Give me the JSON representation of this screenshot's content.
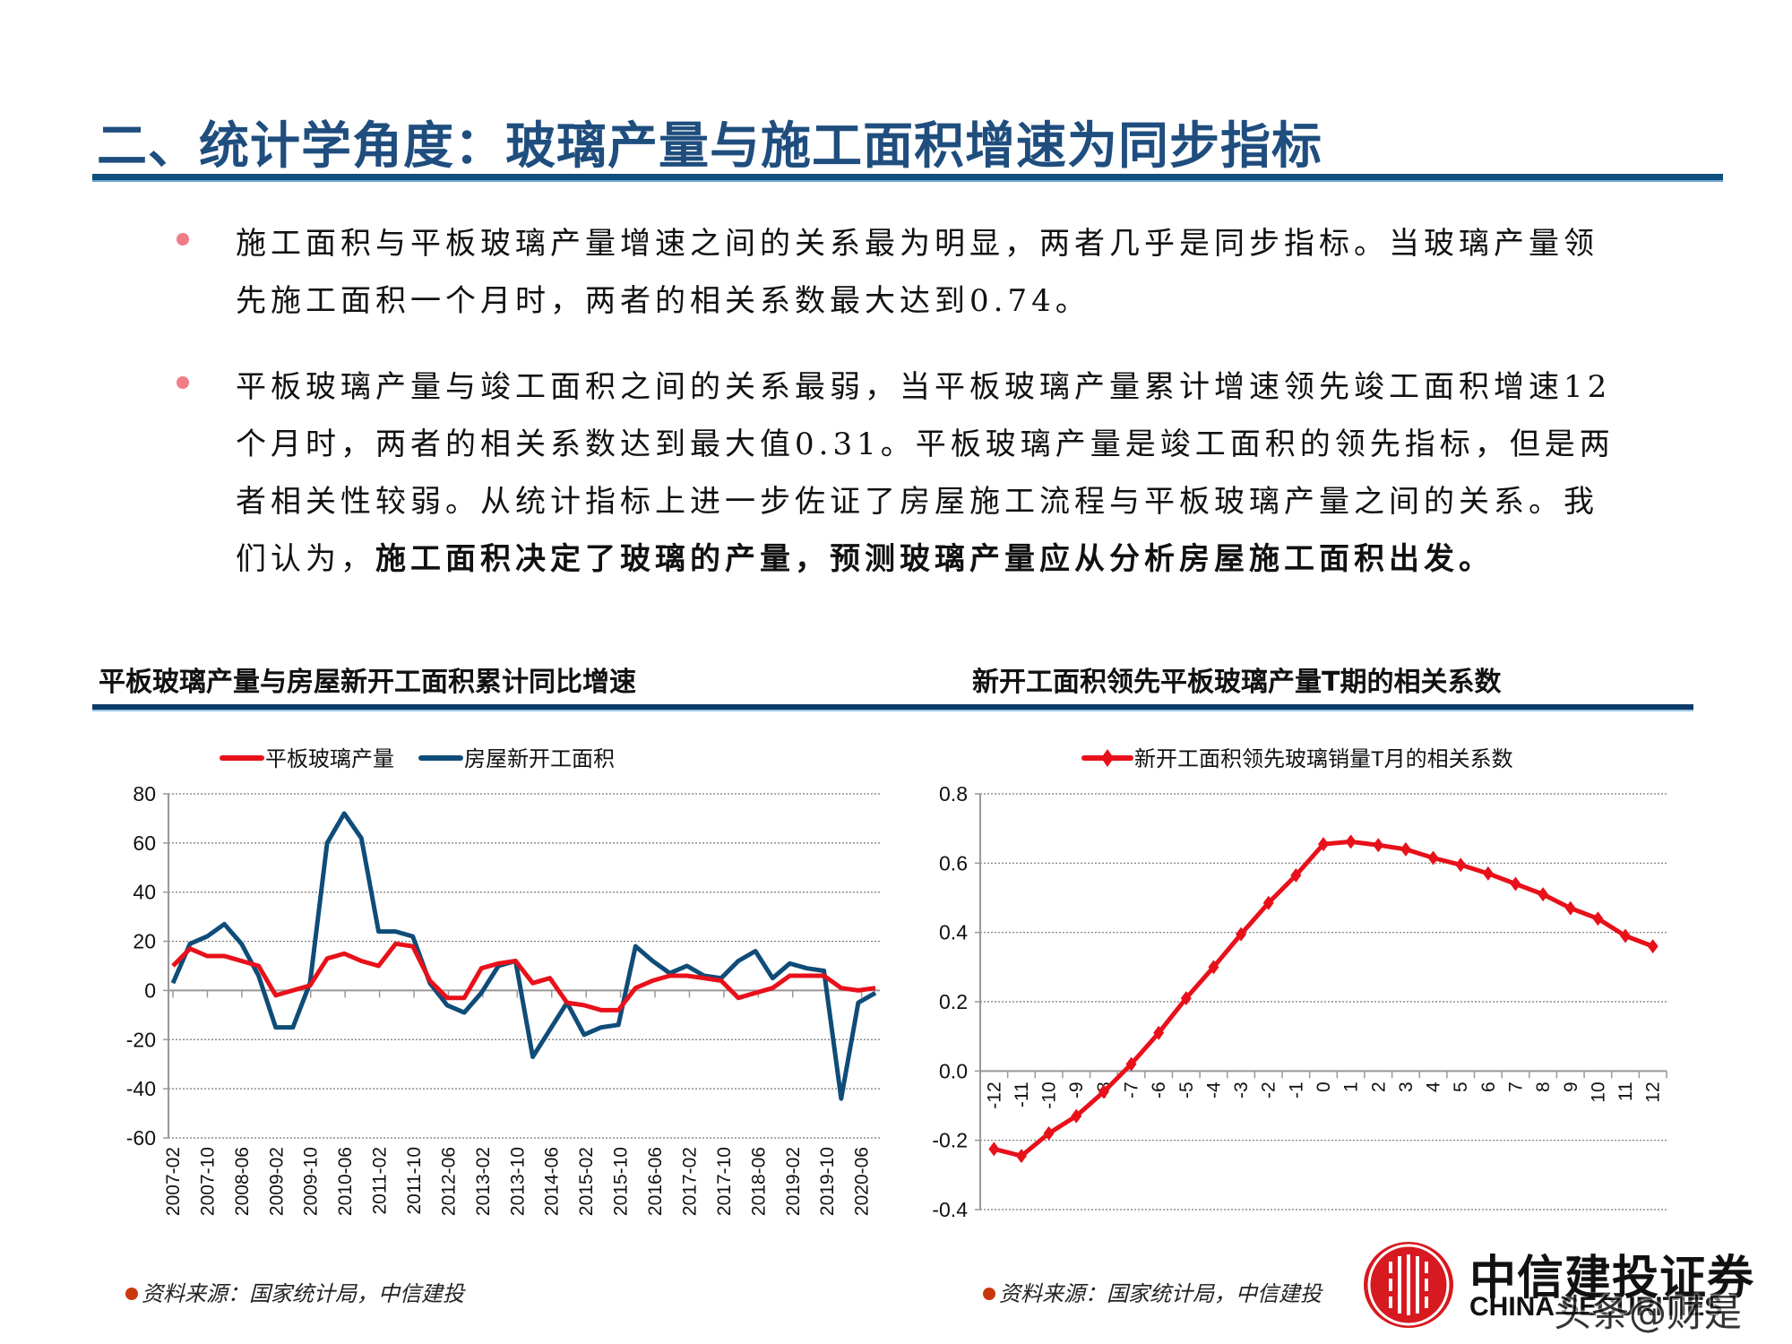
{
  "header": {
    "title": "二、统计学角度：玻璃产量与施工面积增速为同步指标"
  },
  "bullets": [
    {
      "text_plain": "施工面积与平板玻璃产量增速之间的关系最为明显，两者几乎是同步指标。当玻璃产量领先施工面积一个月时，两者的相关系数最大达到0.74。",
      "text_bold": ""
    },
    {
      "text_plain": "平板玻璃产量与竣工面积之间的关系最弱，当平板玻璃产量累计增速领先竣工面积增速12个月时，两者的相关系数达到最大值0.31。平板玻璃产量是竣工面积的领先指标，但是两者相关性较弱。从统计指标上进一步佐证了房屋施工流程与平板玻璃产量之间的关系。我们认为，",
      "text_bold": "施工面积决定了玻璃的产量，预测玻璃产量应从分析房屋施工面积出发。"
    }
  ],
  "left_chart": {
    "title": "平板玻璃产量与房屋新开工面积累计同比增速",
    "source": "资料来源：国家统计局，中信建投"
  },
  "right_chart": {
    "title": "新开工面积领先平板玻璃产量T期的相关系数",
    "source": "资料来源：国家统计局，中信建投"
  },
  "logo": {
    "name_cn": "中信建投证券",
    "name_en": "CHINA SECURITIES",
    "watermark": "头条@财是"
  },
  "colors": {
    "title_blue": "#1f4e7e",
    "rule_blue": "#0d4f7d",
    "glass_red": "#e8101a",
    "area_blue": "#0f4c78",
    "bullet_pink": "#f07c86",
    "source_dot": "#c9380c",
    "logo_red": "#d71920"
  },
  "chart_data": [
    {
      "type": "line",
      "title": "平板玻璃产量与房屋新开工面积累计同比增速",
      "xlabel": "",
      "ylabel": "",
      "ylim": [
        -60,
        80
      ],
      "yticks": [
        80,
        60,
        40,
        20,
        0,
        -20,
        -40,
        -60
      ],
      "grid": true,
      "legend_position": "top",
      "x_tick_labels": [
        "2007-02",
        "2007-10",
        "2008-06",
        "2009-02",
        "2009-10",
        "2010-06",
        "2011-02",
        "2011-10",
        "2012-06",
        "2013-02",
        "2013-10",
        "2014-06",
        "2015-02",
        "2015-10",
        "2016-06",
        "2017-02",
        "2017-10",
        "2018-06",
        "2019-02",
        "2019-10",
        "2020-06"
      ],
      "x": [
        "2007-02",
        "2007-06",
        "2007-10",
        "2008-02",
        "2008-06",
        "2008-10",
        "2009-02",
        "2009-06",
        "2009-10",
        "2010-02",
        "2010-06",
        "2010-10",
        "2011-02",
        "2011-06",
        "2011-10",
        "2012-02",
        "2012-06",
        "2012-10",
        "2013-02",
        "2013-06",
        "2013-10",
        "2014-02",
        "2014-06",
        "2014-10",
        "2015-02",
        "2015-06",
        "2015-10",
        "2016-02",
        "2016-06",
        "2016-10",
        "2017-02",
        "2017-06",
        "2017-10",
        "2018-02",
        "2018-06",
        "2018-10",
        "2019-02",
        "2019-06",
        "2019-10",
        "2020-02",
        "2020-06",
        "2020-10"
      ],
      "series": [
        {
          "name": "平板玻璃产量",
          "color": "#e8101a",
          "values": [
            10,
            17,
            14,
            14,
            12,
            10,
            -2,
            0,
            2,
            13,
            15,
            12,
            10,
            19,
            18,
            4,
            -3,
            -3,
            9,
            11,
            12,
            3,
            5,
            -5,
            -6,
            -8,
            -8,
            1,
            4,
            6,
            6,
            5,
            4,
            -3,
            -1,
            1,
            6,
            6,
            6,
            1,
            0,
            1
          ]
        },
        {
          "name": "房屋新开工面积",
          "color": "#0f4c78",
          "values": [
            3,
            19,
            22,
            27,
            19,
            6,
            -15,
            -15,
            3,
            60,
            72,
            62,
            24,
            24,
            22,
            3,
            -6,
            -9,
            -1,
            10,
            12,
            -27,
            -16,
            -5,
            -18,
            -15,
            -14,
            18,
            12,
            7,
            10,
            6,
            5,
            12,
            16,
            5,
            11,
            9,
            8,
            -44,
            -5,
            -1
          ]
        }
      ]
    },
    {
      "type": "line",
      "title": "新开工面积领先平板玻璃产量T期的相关系数",
      "xlabel": "",
      "ylabel": "",
      "ylim": [
        -0.4,
        0.8
      ],
      "yticks": [
        0.8,
        0.6,
        0.4,
        0.2,
        0.0,
        -0.2,
        -0.4
      ],
      "grid": true,
      "legend_position": "top",
      "categories": [
        -12,
        -11,
        -10,
        -9,
        -8,
        -7,
        -6,
        -5,
        -4,
        -3,
        -2,
        -1,
        0,
        1,
        2,
        3,
        4,
        5,
        6,
        7,
        8,
        9,
        10,
        11,
        12
      ],
      "series": [
        {
          "name": "新开工面积领先玻璃销量T月的相关系数",
          "color": "#e8101a",
          "marker": "diamond",
          "values": [
            -0.225,
            -0.245,
            -0.18,
            -0.13,
            -0.06,
            0.02,
            0.11,
            0.21,
            0.3,
            0.395,
            0.485,
            0.565,
            0.655,
            0.662,
            0.652,
            0.64,
            0.615,
            0.595,
            0.57,
            0.54,
            0.51,
            0.47,
            0.44,
            0.39,
            0.36
          ]
        }
      ]
    }
  ]
}
